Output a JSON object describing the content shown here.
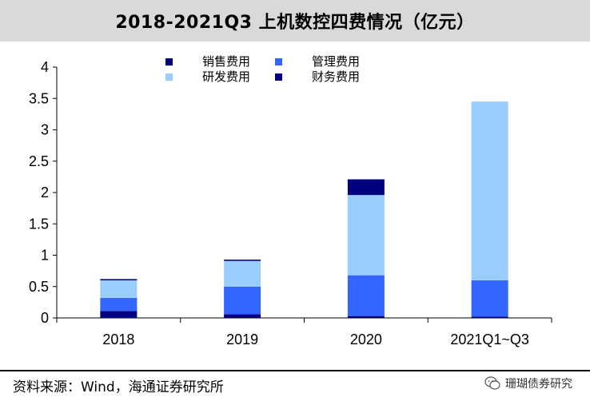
{
  "title": "2018-2021Q3 上机数控四费情况（亿元）",
  "footer": "资料来源：Wind，海通证券研究所",
  "watermark": "珊瑚债券研究",
  "chart_data": {
    "type": "bar",
    "stacked": true,
    "categories": [
      "2018",
      "2019",
      "2020",
      "2021Q1~Q3"
    ],
    "ylim": [
      0,
      4
    ],
    "yticks": [
      0,
      0.5,
      1,
      1.5,
      2,
      2.5,
      3,
      3.5,
      4
    ],
    "ytick_labels": [
      "0",
      "0.5",
      "1",
      "1.5",
      "2",
      "2.5",
      "3",
      "3.5",
      "4"
    ],
    "legend_position": "top",
    "series": [
      {
        "name": "财务费用",
        "color": "#000080",
        "values": [
          0.11,
          0.06,
          0.03,
          0.02
        ]
      },
      {
        "name": "管理费用",
        "color": "#3366ff",
        "values": [
          0.21,
          0.44,
          0.65,
          0.58
        ]
      },
      {
        "name": "研发费用",
        "color": "#99ccff",
        "values": [
          0.28,
          0.41,
          1.28,
          2.85
        ]
      },
      {
        "name": "销售费用",
        "color": "#000080",
        "values": [
          0.02,
          0.02,
          0.25,
          0.0
        ]
      }
    ],
    "legend_order": [
      3,
      1,
      2,
      0
    ]
  }
}
